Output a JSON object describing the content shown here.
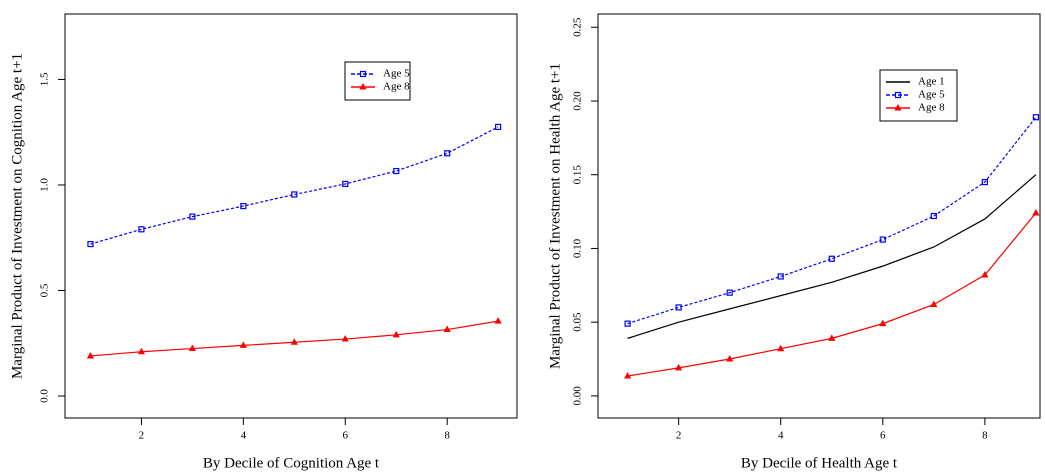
{
  "chart_data": [
    {
      "type": "line",
      "x_label": "By Decile of Cognition Age t",
      "y_label": "Marginal Product of Investment on Cognition Age t+1",
      "x": [
        1,
        2,
        3,
        4,
        5,
        6,
        7,
        8,
        9
      ],
      "xlim": [
        0.5,
        9.37
      ],
      "ylim": [
        -0.104,
        1.81
      ],
      "xticks": [
        2,
        4,
        6,
        8
      ],
      "yticks": [
        {
          "value": 0,
          "label": "0.0"
        },
        0.5,
        {
          "value": 1,
          "label": "1.0"
        },
        1.5
      ],
      "series": [
        {
          "name": "Age 5",
          "color": "#0000ff",
          "marker": "square",
          "dash": true,
          "values": [
            0.72,
            0.79,
            0.85,
            0.9,
            0.955,
            1.005,
            1.066,
            1.15,
            1.275
          ]
        },
        {
          "name": "Age 8",
          "color": "#ff0000",
          "marker": "triangle",
          "dash": false,
          "values": [
            0.19,
            0.21,
            0.225,
            0.24,
            0.255,
            0.27,
            0.29,
            0.315,
            0.355
          ]
        }
      ]
    },
    {
      "type": "line",
      "x_label": "By Decile of Health Age t",
      "y_label": "Marginal Product of Investment on Health Age t+1",
      "x": [
        1,
        2,
        3,
        4,
        5,
        6,
        7,
        8,
        9
      ],
      "xlim": [
        0.42,
        9.08
      ],
      "ylim": [
        -0.015,
        0.259
      ],
      "xticks": [
        2,
        4,
        6,
        8
      ],
      "yticks": [
        {
          "value": 0,
          "label": "0.00"
        },
        {
          "value": 0.05,
          "label": "0.05"
        },
        {
          "value": 0.1,
          "label": "0.10"
        },
        {
          "value": 0.15,
          "label": "0.15"
        },
        {
          "value": 0.2,
          "label": "0.20"
        },
        {
          "value": 0.25,
          "label": "0.25"
        }
      ],
      "series": [
        {
          "name": "Age 1",
          "color": "#000000",
          "marker": "none",
          "dash": false,
          "values": [
            0.039,
            0.05,
            0.059,
            0.068,
            0.077,
            0.088,
            0.101,
            0.12,
            0.15
          ]
        },
        {
          "name": "Age 5",
          "color": "#0000ff",
          "marker": "square",
          "dash": true,
          "values": [
            0.049,
            0.06,
            0.07,
            0.081,
            0.093,
            0.106,
            0.122,
            0.145,
            0.189
          ]
        },
        {
          "name": "Age 8",
          "color": "#ff0000",
          "marker": "triangle",
          "dash": false,
          "values": [
            0.0135,
            0.019,
            0.025,
            0.032,
            0.039,
            0.049,
            0.062,
            0.082,
            0.124
          ]
        }
      ]
    }
  ]
}
